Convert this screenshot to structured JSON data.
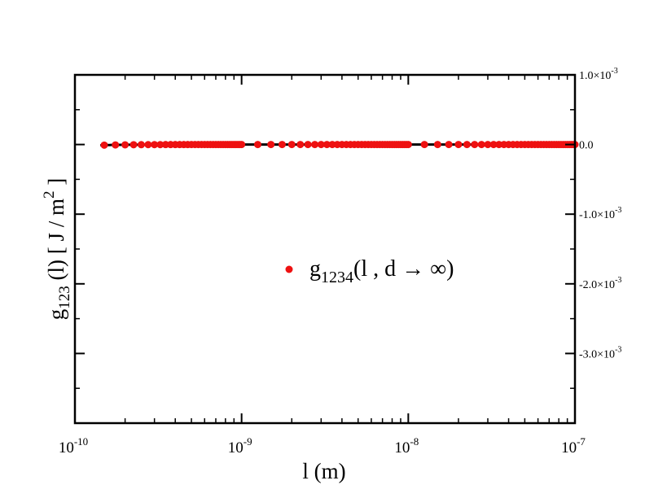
{
  "chart_data": {
    "type": "scatter",
    "xlabel": "l (m)",
    "ylabel": "g123 (l) [ J / m2 ]",
    "ylabel_parts": {
      "g": "g",
      "sub": "123",
      "mid": " (l) [ J / m",
      "sup": "2",
      "end": " ]"
    },
    "x_scale": "log",
    "xlim": [
      1e-10,
      1e-07
    ],
    "ylim": [
      -0.004,
      0.001
    ],
    "x_ticks": [
      {
        "value": 1e-10,
        "base": "10",
        "exp": "-10"
      },
      {
        "value": 1e-09,
        "base": "10",
        "exp": "-9"
      },
      {
        "value": 1e-08,
        "base": "10",
        "exp": "-8"
      },
      {
        "value": 1e-07,
        "base": "10",
        "exp": "-7"
      }
    ],
    "y_ticks_right": [
      {
        "value": 0.001,
        "mant": "1.0×10",
        "exp": "-3"
      },
      {
        "value": 0.0,
        "mant": "0.0",
        "exp": ""
      },
      {
        "value": -0.001,
        "mant": "-1.0×10",
        "exp": "-3"
      },
      {
        "value": -0.002,
        "mant": "-2.0×10",
        "exp": "-3"
      },
      {
        "value": -0.003,
        "mant": "-3.0×10",
        "exp": "-3"
      }
    ],
    "legend": {
      "placement": "center-right",
      "g": "g",
      "sub": "1234",
      "rest": "(l , d → ∞)"
    },
    "colors": {
      "points": "#ee1111",
      "line": "#000000"
    },
    "series": [
      {
        "kind": "points",
        "x": [
          1.5e-10,
          1.75e-10,
          2e-10,
          2.25e-10,
          2.5e-10,
          2.75e-10,
          3e-10,
          3.25e-10,
          3.5e-10,
          3.75e-10,
          4e-10,
          4.25e-10,
          4.5e-10,
          4.75e-10,
          5e-10,
          5.25e-10,
          5.5e-10,
          5.75e-10,
          6e-10,
          6.25e-10,
          6.5e-10,
          6.75e-10,
          7e-10,
          7.25e-10,
          7.5e-10,
          7.75e-10,
          8e-10,
          8.25e-10,
          8.5e-10,
          8.75e-10,
          9e-10,
          9.25e-10,
          9.5e-10,
          9.75e-10,
          1e-09,
          1.25e-09,
          1.5e-09,
          1.75e-09,
          2e-09,
          2.25e-09,
          2.5e-09,
          2.75e-09,
          3e-09,
          3.25e-09,
          3.5e-09,
          3.75e-09,
          4e-09,
          4.25e-09,
          4.5e-09,
          4.75e-09,
          5e-09,
          5.25e-09,
          5.5e-09,
          5.75e-09,
          6e-09,
          6.25e-09,
          6.5e-09,
          6.75e-09,
          7e-09,
          7.25e-09,
          7.5e-09,
          7.75e-09,
          8e-09,
          8.25e-09,
          8.5e-09,
          8.75e-09,
          9e-09,
          9.25e-09,
          9.5e-09,
          9.75e-09,
          1e-08,
          1.25e-08,
          1.5e-08,
          1.75e-08,
          2e-08,
          2.25e-08,
          2.5e-08,
          2.75e-08,
          3e-08,
          3.25e-08,
          3.5e-08,
          3.75e-08,
          4e-08,
          4.25e-08,
          4.5e-08,
          4.75e-08,
          5e-08,
          5.25e-08,
          5.5e-08,
          5.75e-08,
          6e-08,
          6.25e-08,
          6.5e-08,
          6.75e-08,
          7e-08,
          7.25e-08,
          7.5e-08,
          7.75e-08,
          8e-08,
          8.25e-08,
          8.5e-08,
          8.75e-08,
          9e-08,
          9.25e-08,
          9.5e-08,
          9.75e-08,
          1e-07
        ]
      },
      {
        "kind": "line"
      }
    ]
  }
}
